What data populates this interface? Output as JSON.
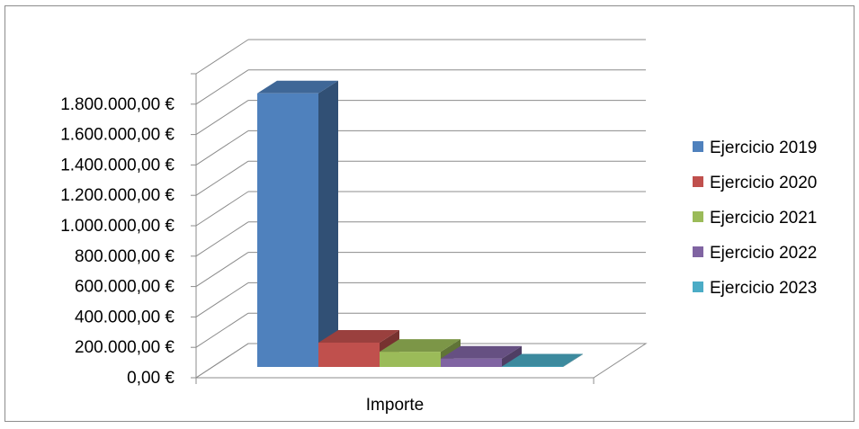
{
  "chart_data": {
    "type": "bar",
    "categories": [
      "Importe"
    ],
    "series": [
      {
        "name": "Ejercicio 2019",
        "values": [
          1800000
        ],
        "color": "#4F81BD"
      },
      {
        "name": "Ejercicio 2020",
        "values": [
          160000
        ],
        "color": "#C0504D"
      },
      {
        "name": "Ejercicio 2021",
        "values": [
          100000
        ],
        "color": "#9BBB59"
      },
      {
        "name": "Ejercicio 2022",
        "values": [
          55000
        ],
        "color": "#8064A2"
      },
      {
        "name": "Ejercicio 2023",
        "values": [
          3000
        ],
        "color": "#4BACC6"
      }
    ],
    "y_ticks": [
      "0,00 €",
      "200.000,00 €",
      "400.000,00 €",
      "600.000,00 €",
      "800.000,00 €",
      "1.000.000,00 €",
      "1.200.000,00 €",
      "1.400.000,00 €",
      "1.600.000,00 €",
      "1.800.000,00 €"
    ],
    "ylim": [
      0,
      2000000
    ],
    "grid": true,
    "legend": "right",
    "three_d": true
  }
}
